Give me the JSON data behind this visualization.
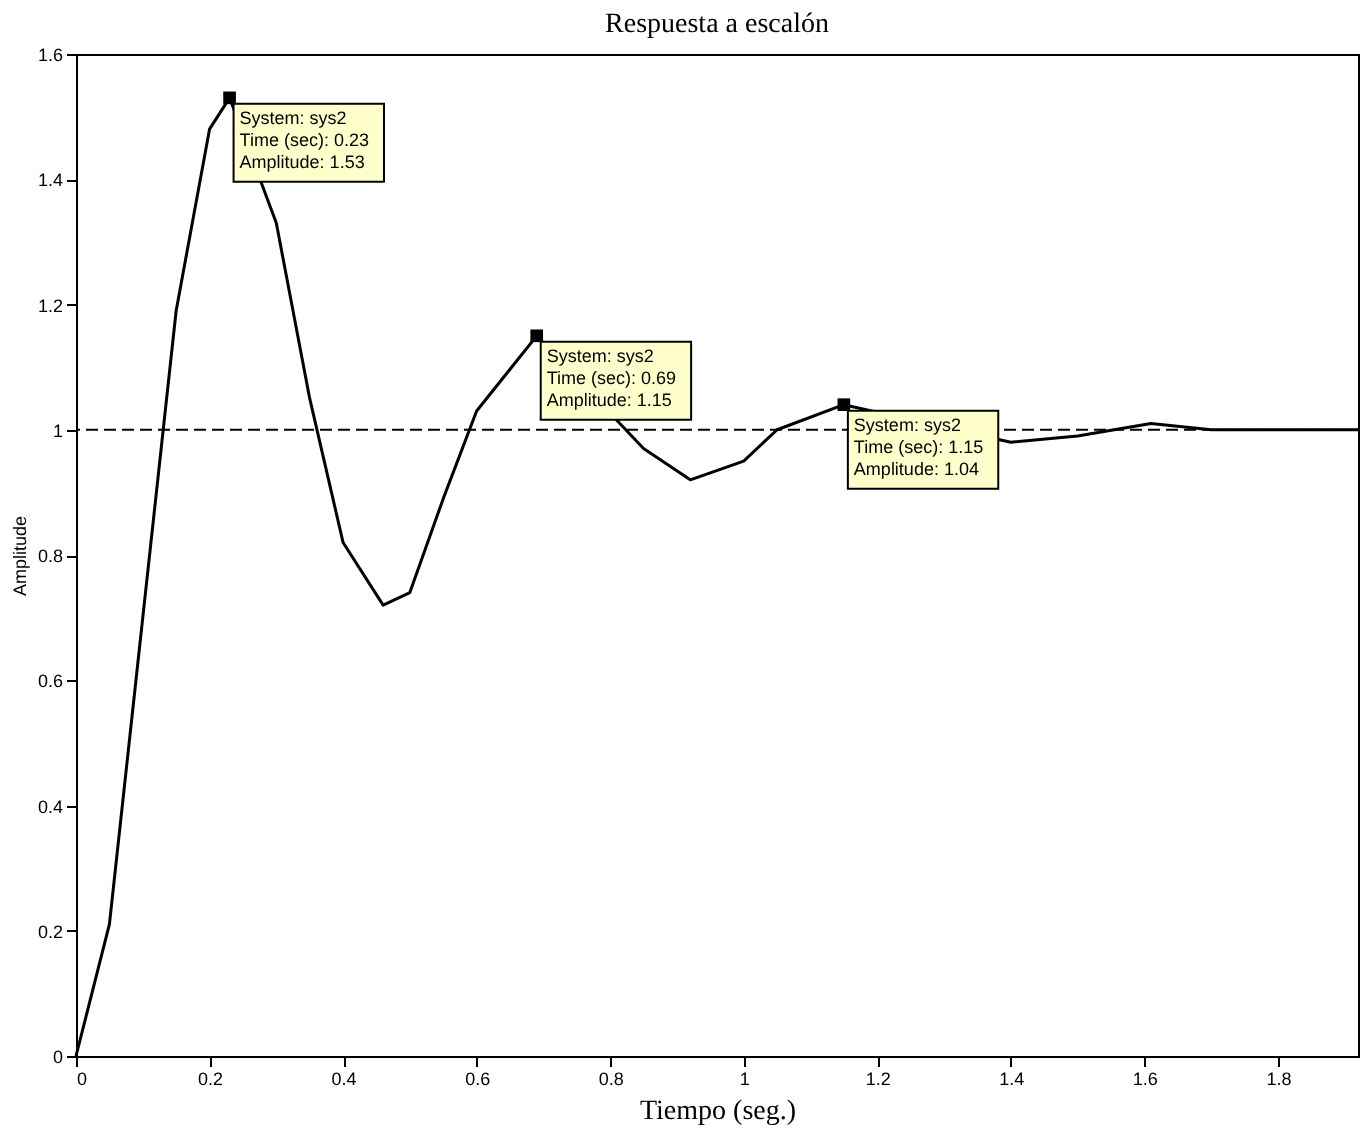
{
  "chart_data": {
    "type": "line",
    "title": "Respuesta a escalón",
    "xlabel": "Tiempo (seg.)",
    "ylabel": "Amplitude",
    "xlim": [
      0,
      1.92
    ],
    "ylim": [
      0,
      1.6
    ],
    "xticks": [
      0,
      0.2,
      0.4,
      0.6,
      0.8,
      1,
      1.2,
      1.4,
      1.6,
      1.8
    ],
    "yticks": [
      0,
      0.2,
      0.4,
      0.6,
      0.8,
      1,
      1.2,
      1.4,
      1.6
    ],
    "grid": false,
    "series": [
      {
        "color": "#000000",
        "marker": "none",
        "line_style": "solid",
        "x": [
          0,
          0.05,
          0.1,
          0.15,
          0.2,
          0.23,
          0.3,
          0.35,
          0.4,
          0.46,
          0.5,
          0.55,
          0.6,
          0.69,
          0.85,
          0.92,
          1.0,
          1.05,
          1.15,
          1.4,
          1.5,
          1.61,
          1.7,
          1.84,
          1.92
        ],
        "values": [
          0,
          0.21,
          0.7,
          1.19,
          1.48,
          1.53,
          1.33,
          1.05,
          0.82,
          0.72,
          0.74,
          0.89,
          1.03,
          1.15,
          0.97,
          0.92,
          0.95,
          1.0,
          1.04,
          0.98,
          0.99,
          1.01,
          1.0,
          1.0,
          1.0
        ]
      },
      {
        "type": "scatter",
        "color": "#000000",
        "marker": "square",
        "x": [
          0.23,
          0.69,
          1.15
        ],
        "values": [
          1.53,
          1.15,
          1.04
        ]
      }
    ],
    "ref_lines": [
      {
        "axis": "y",
        "value": 1,
        "color": "#000000",
        "line_style": "dashed"
      }
    ],
    "annotations": [
      {
        "text": "System: sys2\nTime (sec): 0.23\nAmplitude: 1.53",
        "x": 0.23,
        "y": 1.53
      },
      {
        "text": "System: sys2\nTime (sec): 0.69\nAmplitude: 1.15",
        "x": 0.69,
        "y": 1.15
      },
      {
        "text": "System: sys2\nTime (sec): 1.15\nAmplitude: 1.04",
        "x": 1.15,
        "y": 1.04
      }
    ]
  }
}
